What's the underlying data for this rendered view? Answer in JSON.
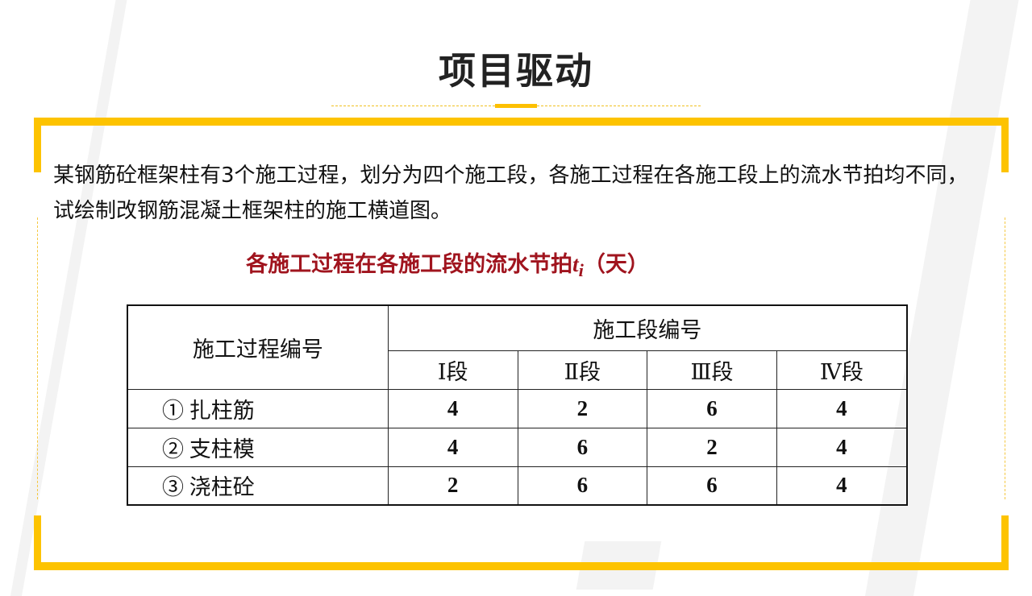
{
  "title": "项目驱动",
  "paragraph": "某钢筋砼框架柱有3个施工过程，划分为四个施工段，各施工过程在各施工段上的流水节拍均不同，试绘制改钢筋混凝土框架柱的施工横道图。",
  "subtitle": {
    "text": "各施工过程在各施工段的流水节拍",
    "var": "t",
    "subscript": "i",
    "unit": "（天）"
  },
  "table": {
    "header_process": "施工过程编号",
    "header_segment": "施工段编号",
    "segments": [
      "Ⅰ段",
      "Ⅱ段",
      "Ⅲ段",
      "Ⅳ段"
    ],
    "rows": [
      {
        "process": "① 扎柱筋",
        "values": [
          "4",
          "2",
          "6",
          "4"
        ]
      },
      {
        "process": "② 支柱模",
        "values": [
          "4",
          "6",
          "2",
          "4"
        ]
      },
      {
        "process": "③ 浇柱砼",
        "values": [
          "2",
          "6",
          "6",
          "4"
        ]
      }
    ]
  },
  "colors": {
    "accent": "#fdc300",
    "subtitle": "#a0141e"
  }
}
